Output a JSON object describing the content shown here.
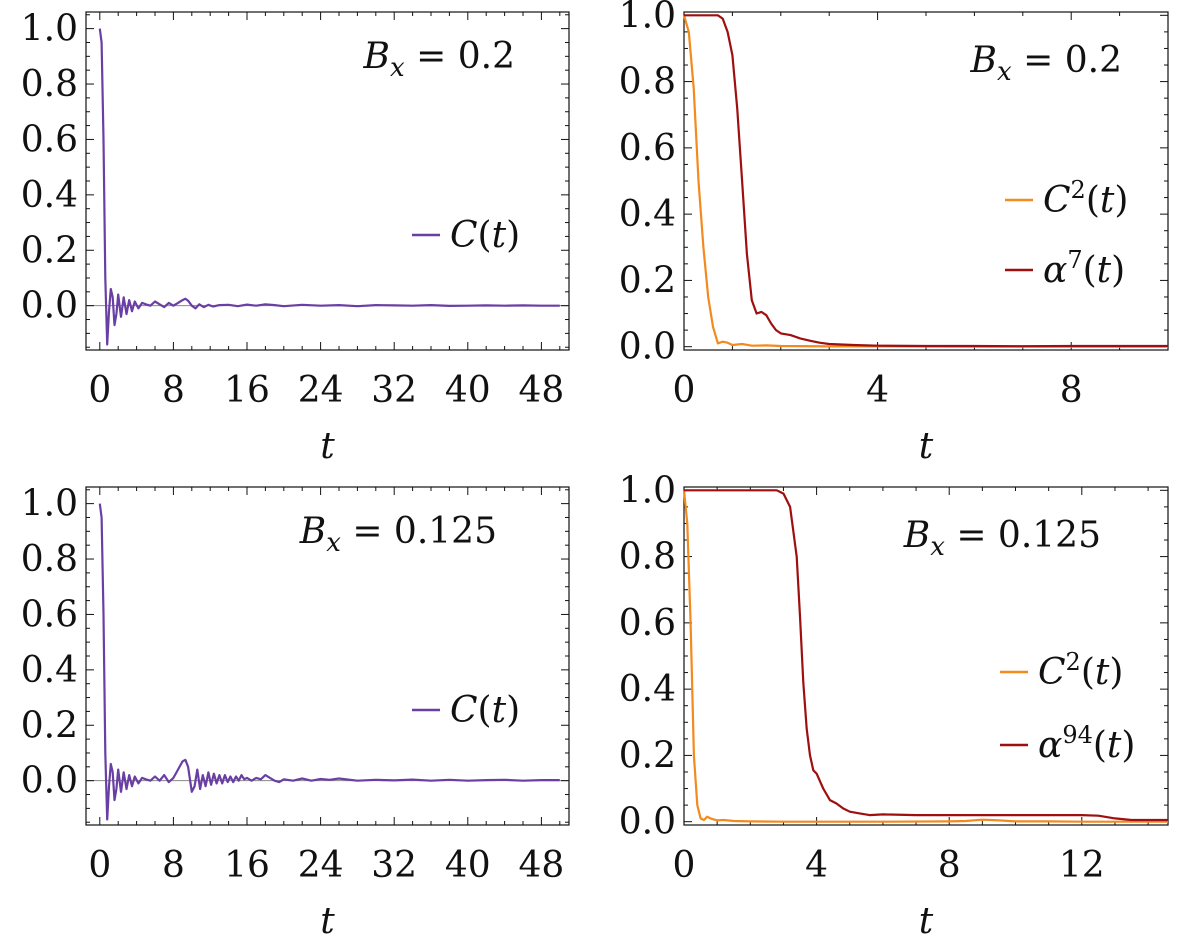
{
  "colors": {
    "purple": "#6a3fa4",
    "orange": "#f28a1e",
    "darkred": "#9e0f0f",
    "frame": "#111111",
    "zero_line": "#888888"
  },
  "chart_data": [
    {
      "id": "top-left",
      "type": "line",
      "annotation": {
        "var": "B",
        "sub": "x",
        "eq": " = 0.2"
      },
      "xlabel": "t",
      "xlim": [
        -1.5,
        51
      ],
      "ylim": [
        -0.16,
        1.06
      ],
      "xticks": [
        0,
        8,
        16,
        24,
        32,
        40,
        48
      ],
      "xtick_labels": [
        "0",
        "8",
        "16",
        "24",
        "32",
        "40",
        "48"
      ],
      "yticks": [
        0.0,
        0.2,
        0.4,
        0.6,
        0.8,
        1.0
      ],
      "ytick_labels": [
        "0.0",
        "0.2",
        "0.4",
        "0.6",
        "0.8",
        "1.0"
      ],
      "zero_line": true,
      "legend": "right",
      "series": [
        {
          "name": "C(t)",
          "label_base": "C(t)",
          "label_sup": "",
          "color": "purple",
          "x": [
            0,
            0.2,
            0.4,
            0.6,
            0.8,
            1.0,
            1.2,
            1.4,
            1.6,
            1.8,
            2.0,
            2.3,
            2.6,
            2.9,
            3.2,
            3.5,
            3.8,
            4.2,
            4.6,
            5.0,
            5.5,
            6.0,
            6.5,
            7.0,
            7.5,
            8.0,
            8.5,
            9.0,
            9.3,
            9.6,
            10.0,
            10.4,
            10.8,
            11.3,
            11.8,
            12.3,
            13,
            14,
            15,
            16,
            17,
            18,
            19,
            20,
            22,
            24,
            26,
            28,
            30,
            32,
            34,
            36,
            38,
            40,
            42,
            44,
            46,
            48,
            50
          ],
          "y": [
            1.0,
            0.95,
            0.6,
            0.1,
            -0.14,
            -0.02,
            0.06,
            0.03,
            -0.07,
            -0.03,
            0.04,
            -0.04,
            0.03,
            -0.03,
            0.02,
            -0.02,
            0.015,
            -0.01,
            0.01,
            0.005,
            0.0,
            0.015,
            0.005,
            -0.005,
            0.01,
            0.0,
            0.01,
            0.02,
            0.025,
            0.018,
            0.0,
            -0.01,
            0.005,
            -0.005,
            0.003,
            -0.003,
            0.002,
            0.003,
            -0.002,
            0.004,
            0.0,
            0.005,
            0.002,
            -0.002,
            0.003,
            0.0,
            0.002,
            -0.002,
            0.002,
            0.001,
            0.0,
            0.002,
            -0.001,
            0.0,
            0.001,
            0.0,
            0.001,
            0.0,
            0.0
          ]
        }
      ]
    },
    {
      "id": "top-right",
      "type": "line",
      "annotation": {
        "var": "B",
        "sub": "x",
        "eq": " = 0.2"
      },
      "xlabel": "t",
      "xlim": [
        0,
        10
      ],
      "ylim": [
        -0.01,
        1.01
      ],
      "xticks": [
        0,
        4,
        8
      ],
      "xtick_labels": [
        "0",
        "4",
        "8"
      ],
      "yticks": [
        0.0,
        0.2,
        0.4,
        0.6,
        0.8,
        1.0
      ],
      "ytick_labels": [
        "0.0",
        "0.2",
        "0.4",
        "0.6",
        "0.8",
        "1.0"
      ],
      "zero_line": false,
      "legend": "right",
      "series": [
        {
          "name": "C^2(t)",
          "label_base": "C",
          "label_sup": "2",
          "label_tail": "(t)",
          "color": "orange",
          "x": [
            0,
            0.1,
            0.2,
            0.3,
            0.4,
            0.5,
            0.6,
            0.7,
            0.8,
            0.9,
            1.0,
            1.2,
            1.4,
            1.7,
            2.0,
            3,
            4,
            6,
            8,
            10
          ],
          "y": [
            1.0,
            0.95,
            0.78,
            0.5,
            0.3,
            0.15,
            0.06,
            0.01,
            0.015,
            0.012,
            0.005,
            0.008,
            0.003,
            0.004,
            0.002,
            0.001,
            0.001,
            0.0,
            0.0,
            0.0
          ]
        },
        {
          "name": "alpha^7(t)",
          "label_base": "α",
          "label_sup": "7",
          "label_tail": "(t)",
          "color": "darkred",
          "x": [
            0,
            0.4,
            0.7,
            0.8,
            0.9,
            1.0,
            1.1,
            1.2,
            1.3,
            1.4,
            1.5,
            1.6,
            1.7,
            1.8,
            1.9,
            2.0,
            2.2,
            2.4,
            2.6,
            2.8,
            3.0,
            3.5,
            4,
            5,
            6,
            7,
            8,
            9,
            10
          ],
          "y": [
            1.0,
            1.0,
            1.0,
            0.99,
            0.95,
            0.88,
            0.72,
            0.5,
            0.28,
            0.14,
            0.1,
            0.105,
            0.095,
            0.07,
            0.05,
            0.04,
            0.035,
            0.025,
            0.018,
            0.012,
            0.008,
            0.005,
            0.003,
            0.002,
            0.002,
            0.0015,
            0.002,
            0.002,
            0.002
          ]
        }
      ]
    },
    {
      "id": "bottom-left",
      "type": "line",
      "annotation": {
        "var": "B",
        "sub": "x",
        "eq": " = 0.125"
      },
      "xlabel": "t",
      "xlim": [
        -1.5,
        51
      ],
      "ylim": [
        -0.16,
        1.06
      ],
      "xticks": [
        0,
        8,
        16,
        24,
        32,
        40,
        48
      ],
      "xtick_labels": [
        "0",
        "8",
        "16",
        "24",
        "32",
        "40",
        "48"
      ],
      "yticks": [
        0.0,
        0.2,
        0.4,
        0.6,
        0.8,
        1.0
      ],
      "ytick_labels": [
        "0.0",
        "0.2",
        "0.4",
        "0.6",
        "0.8",
        "1.0"
      ],
      "zero_line": true,
      "legend": "right",
      "series": [
        {
          "name": "C(t)",
          "label_base": "C(t)",
          "label_sup": "",
          "color": "purple",
          "x": [
            0,
            0.2,
            0.4,
            0.6,
            0.8,
            1.0,
            1.2,
            1.4,
            1.6,
            1.8,
            2.0,
            2.3,
            2.6,
            2.9,
            3.2,
            3.5,
            3.8,
            4.2,
            4.6,
            5.0,
            5.5,
            6.0,
            6.5,
            7.0,
            7.5,
            8.0,
            8.5,
            9.0,
            9.3,
            9.6,
            10.0,
            10.3,
            10.6,
            10.9,
            11.2,
            11.5,
            11.8,
            12.1,
            12.4,
            12.7,
            13.0,
            13.3,
            13.6,
            13.9,
            14.2,
            14.5,
            14.8,
            15.1,
            15.4,
            15.7,
            16.0,
            16.5,
            17,
            17.5,
            18,
            18.5,
            19,
            19.5,
            20,
            21,
            22,
            23,
            24,
            25,
            26,
            27,
            28,
            30,
            32,
            34,
            36,
            38,
            40,
            42,
            44,
            46,
            48,
            50
          ],
          "y": [
            1.0,
            0.95,
            0.6,
            0.1,
            -0.14,
            -0.02,
            0.06,
            0.03,
            -0.07,
            -0.03,
            0.04,
            -0.04,
            0.03,
            -0.03,
            0.02,
            -0.02,
            0.015,
            -0.01,
            0.01,
            0.005,
            0.0,
            0.015,
            0.0,
            0.02,
            -0.005,
            0.01,
            0.04,
            0.07,
            0.075,
            0.05,
            -0.04,
            -0.02,
            0.04,
            -0.03,
            0.02,
            -0.02,
            0.03,
            -0.015,
            0.025,
            -0.01,
            0.02,
            -0.01,
            0.02,
            -0.005,
            0.015,
            -0.005,
            0.015,
            0.0,
            0.02,
            0.005,
            0.01,
            0.0,
            0.01,
            0.005,
            0.02,
            0.01,
            0.0,
            -0.005,
            0.005,
            0.0,
            0.008,
            0.0,
            0.006,
            0.003,
            0.008,
            0.004,
            0.0,
            0.003,
            0.001,
            0.004,
            0.0,
            0.003,
            0.0,
            0.002,
            0.003,
            0.0,
            0.002,
            0.002
          ]
        }
      ]
    },
    {
      "id": "bottom-right",
      "type": "line",
      "annotation": {
        "var": "B",
        "sub": "x",
        "eq": " = 0.125"
      },
      "xlabel": "t",
      "xlim": [
        0,
        14.6
      ],
      "ylim": [
        -0.01,
        1.01
      ],
      "xticks": [
        0,
        4,
        8,
        12
      ],
      "xtick_labels": [
        "0",
        "4",
        "8",
        "12"
      ],
      "yticks": [
        0.0,
        0.2,
        0.4,
        0.6,
        0.8,
        1.0
      ],
      "ytick_labels": [
        "0.0",
        "0.2",
        "0.4",
        "0.6",
        "0.8",
        "1.0"
      ],
      "zero_line": false,
      "legend": "right",
      "series": [
        {
          "name": "C^2(t)",
          "label_base": "C",
          "label_sup": "2",
          "label_tail": "(t)",
          "color": "orange",
          "x": [
            0,
            0.1,
            0.2,
            0.3,
            0.4,
            0.5,
            0.6,
            0.7,
            0.8,
            1.0,
            1.2,
            1.5,
            2,
            3,
            4,
            6,
            8,
            8.5,
            9,
            9.5,
            10,
            11,
            12,
            13,
            14,
            14.6
          ],
          "y": [
            1.0,
            0.9,
            0.6,
            0.2,
            0.05,
            0.01,
            0.005,
            0.015,
            0.01,
            0.004,
            0.005,
            0.002,
            0.001,
            0.0,
            0.0,
            0.0,
            0.001,
            0.002,
            0.006,
            0.004,
            0.001,
            0.001,
            0.0,
            0.0,
            0.0,
            0.0
          ]
        },
        {
          "name": "alpha^94(t)",
          "label_base": "α",
          "label_sup": "94",
          "label_tail": "(t)",
          "color": "darkred",
          "x": [
            0,
            1,
            2,
            2.8,
            3.0,
            3.2,
            3.4,
            3.5,
            3.6,
            3.7,
            3.8,
            3.9,
            4.0,
            4.2,
            4.4,
            4.6,
            4.8,
            5.0,
            5.3,
            5.6,
            6,
            7,
            8,
            9,
            10,
            11,
            12,
            12.5,
            13,
            13.5,
            14,
            14.6
          ],
          "y": [
            1.0,
            1.0,
            1.0,
            1.0,
            0.99,
            0.95,
            0.8,
            0.62,
            0.42,
            0.28,
            0.2,
            0.155,
            0.145,
            0.1,
            0.065,
            0.055,
            0.04,
            0.03,
            0.025,
            0.02,
            0.022,
            0.02,
            0.02,
            0.02,
            0.02,
            0.02,
            0.02,
            0.018,
            0.01,
            0.005,
            0.005,
            0.005
          ]
        }
      ]
    }
  ]
}
